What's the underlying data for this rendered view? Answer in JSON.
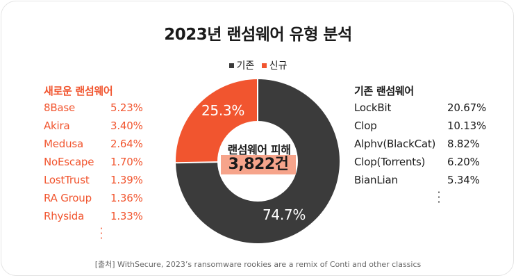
{
  "title": "2023년 랜섬웨어 유형 분석",
  "legend": {
    "existing_label": "기존",
    "new_label": "신규"
  },
  "colors": {
    "existing": "#3b3b3b",
    "new": "#f1552f"
  },
  "center": {
    "label": "랜섬웨어 피해",
    "value": "3,822건"
  },
  "new_ransomware": {
    "title": "새로운 랜섬웨어",
    "items": [
      {
        "name": "8Base",
        "pct": "5.23%"
      },
      {
        "name": "Akira",
        "pct": "3.40%"
      },
      {
        "name": "Medusa",
        "pct": "2.64%"
      },
      {
        "name": "NoEscape",
        "pct": "1.70%"
      },
      {
        "name": "LostTrust",
        "pct": "1.39%"
      },
      {
        "name": "RA Group",
        "pct": "1.36%"
      },
      {
        "name": "Rhysida",
        "pct": "1.33%"
      }
    ]
  },
  "existing_ransomware": {
    "title": "기존 랜섬웨어",
    "items": [
      {
        "name": "LockBit",
        "pct": "20.67%"
      },
      {
        "name": "Clop",
        "pct": "10.13%"
      },
      {
        "name": "Alphv(BlackCat)",
        "pct": "8.82%"
      },
      {
        "name": "Clop(Torrents)",
        "pct": "6.20%"
      },
      {
        "name": "BianLian",
        "pct": "5.34%"
      }
    ]
  },
  "source": "[출처] WithSecure, 2023’s ransomware rookies are a remix of Conti and other classics",
  "chart_data": {
    "type": "pie",
    "title": "2023년 랜섬웨어 유형 분석",
    "categories": [
      "기존",
      "신규"
    ],
    "values": [
      74.7,
      25.3
    ],
    "value_labels": [
      "74.7%",
      "25.3%"
    ],
    "legend_position": "top-center"
  }
}
